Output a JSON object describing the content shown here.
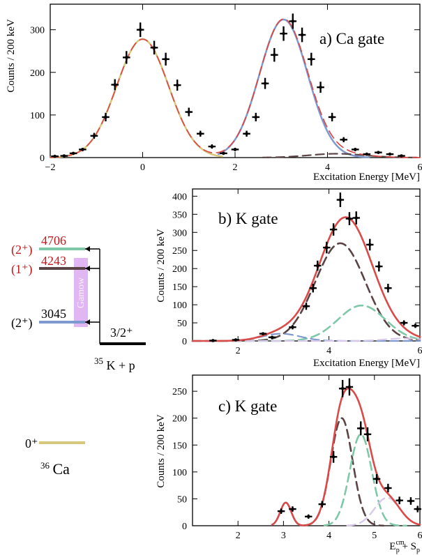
{
  "chart_data": [
    {
      "type": "scatter",
      "panel_label": "a) Ca gate",
      "xlabel": "Excitation Energy [MeV]",
      "ylabel": "Counts / 200 keV",
      "xlim": [
        -2,
        6
      ],
      "ylim": [
        0,
        360
      ],
      "x_ticks": [
        -2,
        0,
        2,
        4,
        6
      ],
      "y_ticks": [
        0,
        100,
        200,
        300
      ],
      "points": [
        {
          "x": -1.9,
          "y": 3,
          "xerr": 0.08,
          "yerr": 2
        },
        {
          "x": -1.7,
          "y": 4,
          "xerr": 0.08,
          "yerr": 2
        },
        {
          "x": -1.5,
          "y": 10,
          "xerr": 0.08,
          "yerr": 3
        },
        {
          "x": -1.3,
          "y": 19,
          "xerr": 0.08,
          "yerr": 4
        },
        {
          "x": -1.05,
          "y": 51,
          "xerr": 0.08,
          "yerr": 7
        },
        {
          "x": -0.8,
          "y": 95,
          "xerr": 0.08,
          "yerr": 10
        },
        {
          "x": -0.6,
          "y": 171,
          "xerr": 0.08,
          "yerr": 13
        },
        {
          "x": -0.35,
          "y": 235,
          "xerr": 0.08,
          "yerr": 15
        },
        {
          "x": -0.05,
          "y": 300,
          "xerr": 0.08,
          "yerr": 17
        },
        {
          "x": 0.25,
          "y": 258,
          "xerr": 0.08,
          "yerr": 16
        },
        {
          "x": 0.5,
          "y": 231,
          "xerr": 0.08,
          "yerr": 15
        },
        {
          "x": 0.75,
          "y": 170,
          "xerr": 0.08,
          "yerr": 13
        },
        {
          "x": 1.0,
          "y": 107,
          "xerr": 0.08,
          "yerr": 10
        },
        {
          "x": 1.25,
          "y": 56,
          "xerr": 0.08,
          "yerr": 7
        },
        {
          "x": 1.5,
          "y": 26,
          "xerr": 0.08,
          "yerr": 5
        },
        {
          "x": 1.75,
          "y": 10,
          "xerr": 0.08,
          "yerr": 3
        },
        {
          "x": 2.0,
          "y": 19,
          "xerr": 0.08,
          "yerr": 4
        },
        {
          "x": 2.25,
          "y": 56,
          "xerr": 0.08,
          "yerr": 7
        },
        {
          "x": 2.45,
          "y": 95,
          "xerr": 0.08,
          "yerr": 10
        },
        {
          "x": 2.65,
          "y": 174,
          "xerr": 0.08,
          "yerr": 13
        },
        {
          "x": 2.85,
          "y": 241,
          "xerr": 0.08,
          "yerr": 16
        },
        {
          "x": 3.05,
          "y": 291,
          "xerr": 0.08,
          "yerr": 17
        },
        {
          "x": 3.25,
          "y": 320,
          "xerr": 0.08,
          "yerr": 18
        },
        {
          "x": 3.45,
          "y": 288,
          "xerr": 0.08,
          "yerr": 17
        },
        {
          "x": 3.65,
          "y": 231,
          "xerr": 0.08,
          "yerr": 15
        },
        {
          "x": 3.85,
          "y": 165,
          "xerr": 0.08,
          "yerr": 13
        },
        {
          "x": 4.1,
          "y": 95,
          "xerr": 0.08,
          "yerr": 10
        },
        {
          "x": 4.35,
          "y": 42,
          "xerr": 0.08,
          "yerr": 6
        },
        {
          "x": 4.6,
          "y": 19,
          "xerr": 0.08,
          "yerr": 4
        },
        {
          "x": 4.85,
          "y": 8,
          "xerr": 0.08,
          "yerr": 3
        },
        {
          "x": 5.1,
          "y": 12,
          "xerr": 0.08,
          "yerr": 3
        },
        {
          "x": 5.35,
          "y": 8,
          "xerr": 0.08,
          "yerr": 3
        },
        {
          "x": 5.6,
          "y": 4,
          "xerr": 0.08,
          "yerr": 2
        }
      ],
      "curves": [
        {
          "kind": "gaussian",
          "color": "#d6c77b",
          "style": "solid",
          "width": 2.5,
          "amp": 278,
          "mu": 0.0,
          "sigma": 0.56,
          "xmin": -2,
          "xmax": 1.72
        },
        {
          "kind": "gaussian",
          "color": "#7d99cf",
          "style": "solid",
          "width": 2.5,
          "amp": 324,
          "mu": 3.05,
          "sigma": 0.52,
          "xmin": 1.64,
          "xmax": 4.9
        },
        {
          "kind": "gaussian",
          "color": "#5a4345",
          "style": "dash",
          "width": 2.2,
          "amp": 9,
          "mu": 4.2,
          "sigma": 0.6,
          "xmin": 2.6,
          "xmax": 6
        },
        {
          "kind": "sum",
          "color": "#d94a48",
          "style": "dash",
          "width": 1.7,
          "components": [
            {
              "amp": 278,
              "mu": 0.0,
              "sigma": 0.56
            },
            {
              "amp": 324,
              "mu": 3.05,
              "sigma": 0.52
            },
            {
              "amp": 9,
              "mu": 4.2,
              "sigma": 0.6
            }
          ],
          "xmin": -2,
          "xmax": 6
        }
      ]
    },
    {
      "type": "scatter",
      "panel_label": "b) K gate",
      "xlabel": "Excitation Energy [MeV]",
      "ylabel": "Counts / 200 keV",
      "xlim": [
        1.0,
        6.0
      ],
      "ylim": [
        0,
        420
      ],
      "x_ticks": [
        2,
        4,
        6
      ],
      "y_ticks": [
        0,
        50,
        100,
        150,
        200,
        250,
        300,
        350,
        400
      ],
      "points": [
        {
          "x": 1.45,
          "y": 1,
          "xerr": 0.08,
          "yerr": 2
        },
        {
          "x": 1.95,
          "y": 3,
          "xerr": 0.08,
          "yerr": 2
        },
        {
          "x": 2.55,
          "y": 20,
          "xerr": 0.08,
          "yerr": 4
        },
        {
          "x": 2.75,
          "y": 10,
          "xerr": 0.08,
          "yerr": 3
        },
        {
          "x": 3.2,
          "y": 38,
          "xerr": 0.08,
          "yerr": 6
        },
        {
          "x": 3.5,
          "y": 96,
          "xerr": 0.08,
          "yerr": 10
        },
        {
          "x": 3.65,
          "y": 146,
          "xerr": 0.08,
          "yerr": 12
        },
        {
          "x": 3.75,
          "y": 208,
          "xerr": 0.08,
          "yerr": 14
        },
        {
          "x": 3.95,
          "y": 258,
          "xerr": 0.08,
          "yerr": 16
        },
        {
          "x": 4.1,
          "y": 308,
          "xerr": 0.08,
          "yerr": 17
        },
        {
          "x": 4.25,
          "y": 390,
          "xerr": 0.08,
          "yerr": 20
        },
        {
          "x": 4.45,
          "y": 338,
          "xerr": 0.08,
          "yerr": 18
        },
        {
          "x": 4.6,
          "y": 340,
          "xerr": 0.08,
          "yerr": 18
        },
        {
          "x": 4.9,
          "y": 266,
          "xerr": 0.08,
          "yerr": 16
        },
        {
          "x": 5.1,
          "y": 206,
          "xerr": 0.08,
          "yerr": 14
        },
        {
          "x": 5.3,
          "y": 146,
          "xerr": 0.08,
          "yerr": 12
        },
        {
          "x": 5.65,
          "y": 50,
          "xerr": 0.08,
          "yerr": 7
        },
        {
          "x": 5.9,
          "y": 42,
          "xerr": 0.08,
          "yerr": 6
        }
      ],
      "curves": [
        {
          "kind": "gaussian",
          "color": "#5a4345",
          "style": "dash",
          "width": 2.6,
          "amp": 270,
          "mu": 4.25,
          "sigma": 0.55,
          "xmin": 1.0,
          "xmax": 6.0
        },
        {
          "kind": "gaussian",
          "color": "#7fc8a7",
          "style": "dash",
          "width": 2.6,
          "amp": 98,
          "mu": 4.72,
          "sigma": 0.52,
          "xmin": 1.0,
          "xmax": 6.0
        },
        {
          "kind": "gaussian",
          "color": "#7d99cf",
          "style": "dash",
          "width": 2.2,
          "amp": 20,
          "mu": 2.95,
          "sigma": 0.42,
          "xmin": 1.0,
          "xmax": 6.0
        },
        {
          "kind": "gaussian",
          "color": "#d8c9ea",
          "style": "dash",
          "width": 2.2,
          "amp": 7,
          "mu": 5.65,
          "sigma": 0.42,
          "xmin": 1.0,
          "xmax": 6.0
        },
        {
          "kind": "sum",
          "color": "#d94a48",
          "style": "solid",
          "width": 2.6,
          "components": [
            {
              "amp": 270,
              "mu": 4.25,
              "sigma": 0.55
            },
            {
              "amp": 98,
              "mu": 4.72,
              "sigma": 0.52
            },
            {
              "amp": 20,
              "mu": 2.95,
              "sigma": 0.42
            },
            {
              "amp": 7,
              "mu": 5.65,
              "sigma": 0.42
            }
          ],
          "xmin": 1.0,
          "xmax": 6.0
        }
      ]
    },
    {
      "type": "scatter",
      "panel_label": "c) K gate",
      "xlabel_main": "E",
      "xlabel_sub1": "p",
      "xlabel_sup1": "cm",
      "xlabel_mid": " + S",
      "xlabel_sub2": "p",
      "ylabel": "Counts / 200 keV",
      "xlim": [
        1.0,
        6.0
      ],
      "ylim": [
        0,
        280
      ],
      "x_ticks": [
        2,
        3,
        4,
        5,
        6
      ],
      "y_ticks": [
        0,
        50,
        100,
        150,
        200,
        250
      ],
      "points": [
        {
          "x": 2.95,
          "y": 27,
          "xerr": 0.08,
          "yerr": 5
        },
        {
          "x": 3.2,
          "y": 31,
          "xerr": 0.08,
          "yerr": 5
        },
        {
          "x": 3.55,
          "y": 17,
          "xerr": 0.08,
          "yerr": 4
        },
        {
          "x": 3.85,
          "y": 40,
          "xerr": 0.08,
          "yerr": 6
        },
        {
          "x": 4.1,
          "y": 128,
          "xerr": 0.08,
          "yerr": 11
        },
        {
          "x": 4.3,
          "y": 255,
          "xerr": 0.08,
          "yerr": 16
        },
        {
          "x": 4.45,
          "y": 258,
          "xerr": 0.08,
          "yerr": 16
        },
        {
          "x": 4.7,
          "y": 181,
          "xerr": 0.08,
          "yerr": 13
        },
        {
          "x": 4.85,
          "y": 170,
          "xerr": 0.08,
          "yerr": 13
        },
        {
          "x": 5.05,
          "y": 87,
          "xerr": 0.08,
          "yerr": 9
        },
        {
          "x": 5.3,
          "y": 70,
          "xerr": 0.08,
          "yerr": 8
        },
        {
          "x": 5.55,
          "y": 47,
          "xerr": 0.08,
          "yerr": 7
        },
        {
          "x": 5.8,
          "y": 46,
          "xerr": 0.08,
          "yerr": 7
        },
        {
          "x": 5.95,
          "y": 31,
          "xerr": 0.08,
          "yerr": 6
        }
      ],
      "curves": [
        {
          "kind": "gaussian",
          "color": "#7d99cf",
          "style": "solid",
          "width": 2.5,
          "amp": 43,
          "mu": 3.05,
          "sigma": 0.12,
          "xmin": 2.75,
          "xmax": 3.4
        },
        {
          "kind": "gaussian",
          "color": "#5a4345",
          "style": "dash",
          "width": 2.6,
          "amp": 200,
          "mu": 4.28,
          "sigma": 0.24,
          "xmin": 3.45,
          "xmax": 5.2
        },
        {
          "kind": "gaussian",
          "color": "#7fc8a7",
          "style": "dash",
          "width": 2.6,
          "amp": 170,
          "mu": 4.7,
          "sigma": 0.24,
          "xmin": 3.9,
          "xmax": 5.7
        },
        {
          "kind": "gaussian",
          "color": "#d8c9ea",
          "style": "dash",
          "width": 2.4,
          "amp": 52,
          "mu": 5.28,
          "sigma": 0.28,
          "xmin": 4.4,
          "xmax": 6.0
        },
        {
          "kind": "sum",
          "color": "#d94a48",
          "style": "solid",
          "width": 2.6,
          "components": [
            {
              "amp": 43,
              "mu": 3.05,
              "sigma": 0.12
            },
            {
              "amp": 200,
              "mu": 4.28,
              "sigma": 0.24
            },
            {
              "amp": 170,
              "mu": 4.7,
              "sigma": 0.24
            },
            {
              "amp": 52,
              "mu": 5.28,
              "sigma": 0.28
            }
          ],
          "xmin": 2.75,
          "xmax": 6.0
        }
      ]
    }
  ],
  "level_scheme": {
    "levels": [
      {
        "spin": "(2⁺)",
        "energy": "4706",
        "color": "#7fc8a7",
        "energy_color": "#c5161d"
      },
      {
        "spin": "(1⁺)",
        "energy": "4243",
        "color": "#5a4345",
        "energy_color": "#c5161d"
      },
      {
        "spin": "(2⁺)",
        "energy": "3045",
        "color": "#7d99cf",
        "energy_color": "#000000"
      },
      {
        "spin": "0⁺",
        "energy": "",
        "color": "#d6c77b",
        "energy_color": "#000000"
      }
    ],
    "gamow": "Gamow",
    "threshold_spin": "3/2⁺",
    "threshold_label_mass": "35",
    "threshold_label_text": "K + p",
    "ground_label_mass": "36",
    "ground_label_text": "Ca"
  }
}
